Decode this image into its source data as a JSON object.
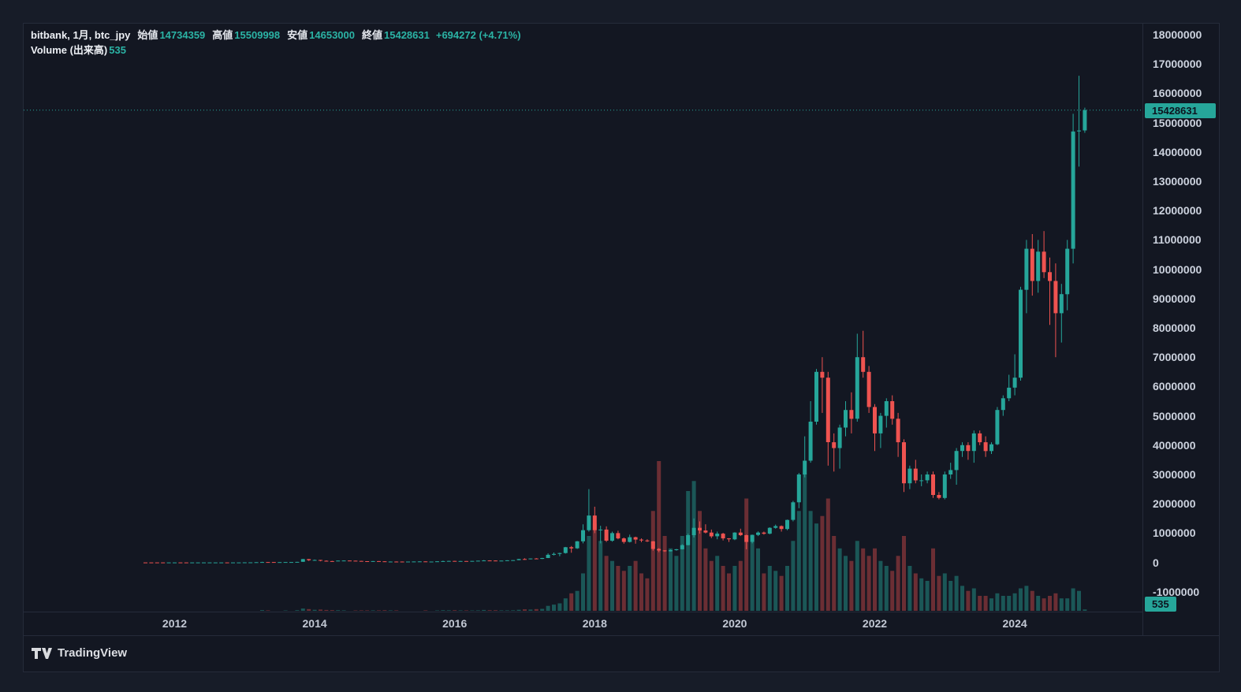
{
  "legend": {
    "symbol": "bitbank, 1月, btc_jpy",
    "open_label": "始値",
    "open": "14734359",
    "high_label": "高値",
    "high": "15509998",
    "low_label": "安値",
    "low": "14653000",
    "close_label": "終値",
    "close": "15428631",
    "change": "+694272 (+4.71%)",
    "volume_label": "Volume (出来高)",
    "volume": "535"
  },
  "price_axis": {
    "ticks": [
      "18000000",
      "17000000",
      "16000000",
      "15000000",
      "14000000",
      "13000000",
      "12000000",
      "11000000",
      "10000000",
      "9000000",
      "8000000",
      "7000000",
      "6000000",
      "5000000",
      "4000000",
      "3000000",
      "2000000",
      "1000000",
      "0",
      "-1000000"
    ],
    "last_price": "15428631",
    "last_volume": "535"
  },
  "time_axis": {
    "ticks": [
      "2012",
      "2014",
      "2016",
      "2018",
      "2020",
      "2022",
      "2024"
    ]
  },
  "footer": {
    "brand": "TradingView"
  },
  "colors": {
    "up": "#26a69a",
    "down": "#ef5350",
    "vol_up": "rgba(38,166,154,0.45)",
    "vol_down": "rgba(239,83,80,0.4)",
    "price_line": "#26a69a",
    "badge_bg": "#26a69a",
    "background": "#131722"
  },
  "chart_data": {
    "type": "candlestick",
    "title": "bitbank btc_jpy monthly candlestick chart with volume",
    "interval": "1月 (1 month)",
    "start": "2011-08",
    "y_axis": {
      "min": -1000000,
      "max": 18000000,
      "step": 1000000
    },
    "x_ticks": [
      "2012",
      "2014",
      "2016",
      "2018",
      "2020",
      "2022",
      "2024"
    ],
    "last": {
      "open": 14734359,
      "high": 15509998,
      "low": 14653000,
      "close": 15428631,
      "change": 694272,
      "change_pct": 4.71,
      "volume": 535
    },
    "columns": [
      "open",
      "high",
      "low",
      "close",
      "volume"
    ],
    "ohlcv": [
      [
        1000,
        1200,
        600,
        800,
        10
      ],
      [
        800,
        900,
        400,
        500,
        12
      ],
      [
        500,
        550,
        200,
        300,
        15
      ],
      [
        300,
        350,
        150,
        250,
        14
      ],
      [
        250,
        400,
        200,
        350,
        16
      ],
      [
        350,
        600,
        300,
        500,
        20
      ],
      [
        500,
        520,
        350,
        400,
        18
      ],
      [
        400,
        420,
        350,
        390,
        15
      ],
      [
        390,
        430,
        370,
        400,
        14
      ],
      [
        400,
        440,
        380,
        410,
        13
      ],
      [
        410,
        560,
        390,
        530,
        18
      ],
      [
        530,
        780,
        500,
        750,
        22
      ],
      [
        750,
        1200,
        700,
        800,
        25
      ],
      [
        800,
        1050,
        750,
        990,
        20
      ],
      [
        990,
        1020,
        820,
        880,
        18
      ],
      [
        880,
        1050,
        850,
        1000,
        20
      ],
      [
        1000,
        1150,
        950,
        1100,
        22
      ],
      [
        1100,
        1900,
        1050,
        1800,
        40
      ],
      [
        1800,
        3200,
        1700,
        3100,
        60
      ],
      [
        3100,
        9000,
        3000,
        8800,
        120
      ],
      [
        8800,
        24000,
        5000,
        13000,
        300
      ],
      [
        13000,
        14000,
        9000,
        12500,
        200
      ],
      [
        12500,
        13000,
        8800,
        9500,
        150
      ],
      [
        9500,
        11000,
        6500,
        10000,
        140
      ],
      [
        10000,
        13500,
        9500,
        13000,
        160
      ],
      [
        13000,
        14500,
        11500,
        13500,
        150
      ],
      [
        13500,
        21000,
        12500,
        20000,
        250
      ],
      [
        20000,
        120000,
        19000,
        112000,
        900
      ],
      [
        112000,
        118000,
        50000,
        75000,
        700
      ],
      [
        75000,
        100000,
        70000,
        84000,
        400
      ],
      [
        84000,
        86000,
        40000,
        57000,
        500
      ],
      [
        57000,
        70000,
        44000,
        46000,
        350
      ],
      [
        46000,
        55000,
        35000,
        45000,
        300
      ],
      [
        45000,
        65000,
        43000,
        63000,
        250
      ],
      [
        63000,
        68000,
        55000,
        64000,
        200
      ],
      [
        64000,
        66000,
        58000,
        60000,
        150
      ],
      [
        60000,
        62000,
        46000,
        52000,
        160
      ],
      [
        52000,
        54000,
        38000,
        42000,
        180
      ],
      [
        42000,
        44000,
        32000,
        37000,
        200
      ],
      [
        37000,
        48000,
        33000,
        45000,
        180
      ],
      [
        45000,
        46000,
        30000,
        38000,
        200
      ],
      [
        38000,
        39000,
        20000,
        26000,
        260
      ],
      [
        26000,
        32000,
        25000,
        30000,
        200
      ],
      [
        30000,
        36000,
        28000,
        29500,
        180
      ],
      [
        29500,
        31000,
        26000,
        28000,
        150
      ],
      [
        28000,
        30000,
        27000,
        28500,
        120
      ],
      [
        28500,
        33000,
        27500,
        32000,
        130
      ],
      [
        32000,
        38000,
        30000,
        35000,
        140
      ],
      [
        35000,
        36000,
        24000,
        27000,
        180
      ],
      [
        27000,
        30000,
        26000,
        28500,
        140
      ],
      [
        28500,
        40000,
        28000,
        37000,
        170
      ],
      [
        37000,
        60000,
        36000,
        46000,
        260
      ],
      [
        46000,
        56000,
        42000,
        52000,
        220
      ],
      [
        52000,
        54000,
        40000,
        44000,
        240
      ],
      [
        44000,
        51000,
        42000,
        49000,
        200
      ],
      [
        49000,
        51000,
        45000,
        47000,
        180
      ],
      [
        47000,
        52000,
        46000,
        50000,
        170
      ],
      [
        50000,
        59000,
        48000,
        58000,
        200
      ],
      [
        58000,
        80000,
        56000,
        68000,
        350
      ],
      [
        68000,
        72000,
        60000,
        64000,
        250
      ],
      [
        64000,
        66000,
        52000,
        59000,
        240
      ],
      [
        59000,
        63000,
        57000,
        62000,
        180
      ],
      [
        62000,
        74000,
        60000,
        73000,
        200
      ],
      [
        73000,
        78000,
        68000,
        77000,
        220
      ],
      [
        77000,
        120000,
        75000,
        115000,
        400
      ],
      [
        115000,
        140000,
        90000,
        112000,
        600
      ],
      [
        112000,
        137000,
        105000,
        135000,
        500
      ],
      [
        135000,
        148000,
        110000,
        120000,
        700
      ],
      [
        120000,
        155000,
        115000,
        150000,
        800
      ],
      [
        150000,
        310000,
        148000,
        260000,
        2000
      ],
      [
        260000,
        340000,
        240000,
        290000,
        2500
      ],
      [
        290000,
        330000,
        210000,
        320000,
        3000
      ],
      [
        320000,
        530000,
        300000,
        520000,
        5000
      ],
      [
        520000,
        560000,
        330000,
        480000,
        7000
      ],
      [
        480000,
        730000,
        460000,
        720000,
        8000
      ],
      [
        720000,
        1300000,
        650000,
        1100000,
        15000
      ],
      [
        1100000,
        2500000,
        1050000,
        1600000,
        30000
      ],
      [
        1600000,
        1900000,
        1000000,
        1100000,
        35000
      ],
      [
        1100000,
        1250000,
        650000,
        1120000,
        28000
      ],
      [
        1120000,
        1230000,
        700000,
        740000,
        22000
      ],
      [
        740000,
        1050000,
        710000,
        1000000,
        20000
      ],
      [
        1000000,
        1080000,
        790000,
        820000,
        18000
      ],
      [
        820000,
        850000,
        640000,
        700000,
        16000
      ],
      [
        700000,
        950000,
        680000,
        860000,
        18000
      ],
      [
        860000,
        880000,
        640000,
        780000,
        20000
      ],
      [
        780000,
        820000,
        690000,
        750000,
        15000
      ],
      [
        750000,
        790000,
        700000,
        720000,
        13000
      ],
      [
        720000,
        730000,
        400000,
        460000,
        40000
      ],
      [
        460000,
        490000,
        350000,
        410000,
        60000
      ],
      [
        410000,
        420000,
        360000,
        380000,
        30000
      ],
      [
        380000,
        440000,
        370000,
        420000,
        25000
      ],
      [
        420000,
        460000,
        400000,
        450000,
        22000
      ],
      [
        450000,
        620000,
        440000,
        590000,
        30000
      ],
      [
        590000,
        980000,
        580000,
        930000,
        48000
      ],
      [
        930000,
        1500000,
        850000,
        1180000,
        52000
      ],
      [
        1180000,
        1400000,
        980000,
        1090000,
        40000
      ],
      [
        1090000,
        1300000,
        990000,
        1020000,
        25000
      ],
      [
        1020000,
        1120000,
        830000,
        890000,
        20000
      ],
      [
        890000,
        1050000,
        790000,
        980000,
        22000
      ],
      [
        980000,
        1010000,
        750000,
        820000,
        18000
      ],
      [
        820000,
        830000,
        700000,
        790000,
        15000
      ],
      [
        790000,
        1030000,
        760000,
        1020000,
        18000
      ],
      [
        1020000,
        1150000,
        900000,
        930000,
        20000
      ],
      [
        930000,
        950000,
        450000,
        700000,
        45000
      ],
      [
        700000,
        950000,
        650000,
        940000,
        30000
      ],
      [
        940000,
        1060000,
        900000,
        1020000,
        25000
      ],
      [
        1020000,
        1050000,
        950000,
        980000,
        15000
      ],
      [
        980000,
        1200000,
        960000,
        1180000,
        18000
      ],
      [
        1180000,
        1290000,
        1150000,
        1240000,
        16000
      ],
      [
        1240000,
        1260000,
        1050000,
        1140000,
        14000
      ],
      [
        1140000,
        1460000,
        1100000,
        1450000,
        18000
      ],
      [
        1450000,
        2100000,
        1400000,
        2050000,
        28000
      ],
      [
        2050000,
        3050000,
        1850000,
        3000000,
        40000
      ],
      [
        3000000,
        4300000,
        2900000,
        3470000,
        55000
      ],
      [
        3470000,
        5500000,
        3400000,
        4800000,
        40000
      ],
      [
        4800000,
        6600000,
        4700000,
        6500000,
        35000
      ],
      [
        6500000,
        7000000,
        5100000,
        6300000,
        38000
      ],
      [
        6300000,
        6500000,
        3300000,
        4100000,
        45000
      ],
      [
        4100000,
        4400000,
        3100000,
        3900000,
        30000
      ],
      [
        3900000,
        4700000,
        3200000,
        4600000,
        25000
      ],
      [
        4600000,
        5500000,
        4300000,
        5200000,
        22000
      ],
      [
        5200000,
        5800000,
        4400000,
        4900000,
        20000
      ],
      [
        4900000,
        7800000,
        4800000,
        7000000,
        28000
      ],
      [
        7000000,
        7900000,
        6300000,
        6500000,
        25000
      ],
      [
        6500000,
        6700000,
        5100000,
        5300000,
        22000
      ],
      [
        5300000,
        5400000,
        3800000,
        4400000,
        25000
      ],
      [
        4400000,
        5100000,
        3900000,
        5000000,
        20000
      ],
      [
        5000000,
        5600000,
        4600000,
        5500000,
        18000
      ],
      [
        5500000,
        5700000,
        4700000,
        4900000,
        16000
      ],
      [
        4900000,
        5100000,
        3600000,
        4100000,
        22000
      ],
      [
        4100000,
        4200000,
        2400000,
        2700000,
        30000
      ],
      [
        2700000,
        3300000,
        2500000,
        3200000,
        18000
      ],
      [
        3200000,
        3500000,
        2700000,
        2800000,
        15000
      ],
      [
        2800000,
        3000000,
        2600000,
        2800000,
        13000
      ],
      [
        2800000,
        3100000,
        2700000,
        3000000,
        12000
      ],
      [
        3000000,
        3100000,
        2200000,
        2300000,
        25000
      ],
      [
        2300000,
        2400000,
        2150000,
        2200000,
        14000
      ],
      [
        2200000,
        3100000,
        2150000,
        3000000,
        15000
      ],
      [
        3000000,
        3400000,
        2850000,
        3150000,
        12000
      ],
      [
        3150000,
        3900000,
        2650000,
        3800000,
        14000
      ],
      [
        3800000,
        4100000,
        3600000,
        4000000,
        10000
      ],
      [
        4000000,
        4100000,
        3500000,
        3800000,
        8000
      ],
      [
        3800000,
        4500000,
        3400000,
        4400000,
        9000
      ],
      [
        4400000,
        4500000,
        4000000,
        4100000,
        6000
      ],
      [
        4100000,
        4300000,
        3600000,
        3800000,
        6000
      ],
      [
        3800000,
        4100000,
        3700000,
        4030000,
        5000
      ],
      [
        4030000,
        5300000,
        4000000,
        5200000,
        7000
      ],
      [
        5200000,
        5700000,
        5000000,
        5600000,
        6000
      ],
      [
        5600000,
        6400000,
        5500000,
        5960000,
        6000
      ],
      [
        5960000,
        7100000,
        5700000,
        6300000,
        7000
      ],
      [
        6300000,
        9400000,
        6200000,
        9300000,
        9000
      ],
      [
        9300000,
        11000000,
        8500000,
        10700000,
        10000
      ],
      [
        10700000,
        11200000,
        9100000,
        9600000,
        8000
      ],
      [
        9600000,
        11000000,
        9200000,
        10600000,
        6000
      ],
      [
        10600000,
        11300000,
        9700000,
        9900000,
        5000
      ],
      [
        9900000,
        10400000,
        8100000,
        9600000,
        6000
      ],
      [
        9600000,
        10200000,
        7000000,
        8500000,
        7000
      ],
      [
        8500000,
        9500000,
        7500000,
        9150000,
        5000
      ],
      [
        9150000,
        11000000,
        8600000,
        10700000,
        5000
      ],
      [
        10700000,
        15300000,
        10200000,
        14700000,
        9000
      ],
      [
        14700000,
        16600000,
        13500000,
        14730000,
        8000
      ],
      [
        14734359,
        15509998,
        14653000,
        15428631,
        535
      ]
    ]
  }
}
